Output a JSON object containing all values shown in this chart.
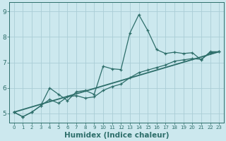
{
  "title": "",
  "xlabel": "Humidex (Indice chaleur)",
  "ylabel": "",
  "bg_color": "#cce8ee",
  "line_color": "#2d6e6a",
  "grid_color": "#aacdd6",
  "xlim": [
    -0.5,
    23.5
  ],
  "ylim": [
    4.65,
    9.35
  ],
  "yticks": [
    5,
    6,
    7,
    8,
    9
  ],
  "xticks": [
    0,
    1,
    2,
    3,
    4,
    5,
    6,
    7,
    8,
    9,
    10,
    11,
    12,
    13,
    14,
    15,
    16,
    17,
    18,
    19,
    20,
    21,
    22,
    23
  ],
  "curve1_x": [
    0,
    1,
    2,
    3,
    4,
    5,
    6,
    7,
    8,
    9,
    10,
    11,
    12,
    13,
    14,
    15,
    16,
    17,
    18,
    19,
    20,
    21,
    22,
    23
  ],
  "curve1_y": [
    5.05,
    4.87,
    5.05,
    5.3,
    6.0,
    5.75,
    5.5,
    5.85,
    5.9,
    5.75,
    6.85,
    6.75,
    6.72,
    8.15,
    8.87,
    8.25,
    7.5,
    7.35,
    7.4,
    7.35,
    7.38,
    7.1,
    7.42,
    7.42
  ],
  "curve2_x": [
    0,
    1,
    2,
    3,
    4,
    5,
    6,
    7,
    8,
    9,
    10,
    11,
    12,
    13,
    14,
    15,
    16,
    17,
    18,
    19,
    20,
    21,
    22,
    23
  ],
  "curve2_y": [
    5.05,
    4.87,
    5.05,
    5.3,
    5.55,
    5.4,
    5.65,
    5.7,
    5.6,
    5.65,
    5.9,
    6.05,
    6.15,
    6.4,
    6.6,
    6.7,
    6.8,
    6.9,
    7.05,
    7.1,
    7.15,
    7.12,
    7.38,
    7.42
  ],
  "curve3_x": [
    0,
    23
  ],
  "curve3_y": [
    5.05,
    7.42
  ],
  "marker": "+",
  "markersize": 3.5,
  "linewidth": 0.9,
  "xlabel_fontsize": 7.5,
  "tick_fontsize_x": 5.0,
  "tick_fontsize_y": 6.5
}
